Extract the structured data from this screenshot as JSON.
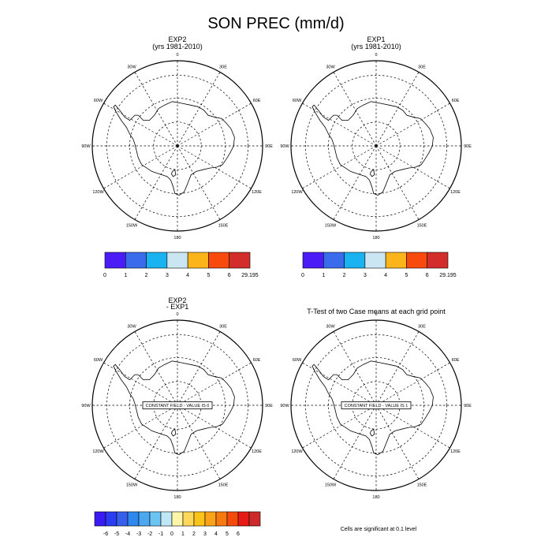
{
  "title": "SON PREC (mm/d)",
  "panels": [
    {
      "id": "exp2",
      "title_lines": [
        "EXP2",
        "(yrs 1981-2010)"
      ],
      "constant_field": null
    },
    {
      "id": "exp1",
      "title_lines": [
        "EXP1",
        "(yrs 1981-2010)"
      ],
      "constant_field": null
    },
    {
      "id": "diff",
      "title_lines": [
        "EXP2",
        "- EXP1"
      ],
      "constant_field": "CONSTANT FIELD - VALUE IS 0"
    },
    {
      "id": "ttest",
      "title_lines": [
        "T-Test of two Case means at each grid point"
      ],
      "constant_field": "CONSTANT FIELD - VALUE IS 1"
    }
  ],
  "lon_labels": [
    "0",
    "30E",
    "60E",
    "90E",
    "120E",
    "150E",
    "180",
    "150W",
    "120W",
    "90W",
    "60W",
    "30W"
  ],
  "colorbar_abs": {
    "colors": [
      "#4b1cf5",
      "#3a6bec",
      "#1ab3f2",
      "#c9e6f2",
      "#fbb51b",
      "#f84a0c",
      "#d22d2a"
    ],
    "labels": [
      "0",
      "1",
      "2",
      "3",
      "4",
      "5",
      "6",
      "29.195"
    ]
  },
  "colorbar_diff": {
    "colors": [
      "#3a1bf2",
      "#2c3cf3",
      "#3660ec",
      "#2f88ee",
      "#4aa7f0",
      "#6cc4f2",
      "#bfe6f4",
      "#fcf4a8",
      "#fcd85a",
      "#fbc21a",
      "#f9a21a",
      "#f77a10",
      "#f44a0c",
      "#e61b15",
      "#cc2a2a"
    ],
    "labels": [
      "-6",
      "-5",
      "-4",
      "-3",
      "-2",
      "-1",
      "0",
      "1",
      "2",
      "3",
      "4",
      "5",
      "6"
    ]
  },
  "footnote": "Cells are significant at 0.1 level"
}
